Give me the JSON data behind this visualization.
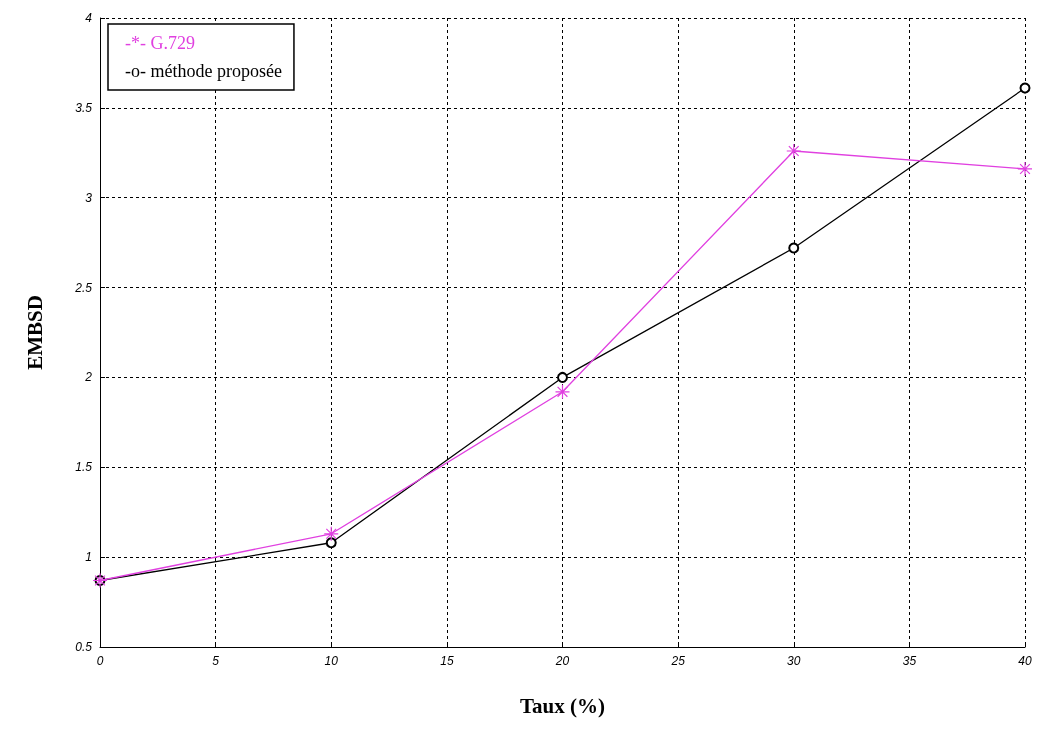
{
  "chart_data": {
    "type": "line",
    "xlabel": "Taux (%)",
    "ylabel": "EMBSD",
    "x": [
      0,
      10,
      20,
      30,
      40
    ],
    "series": [
      {
        "name": "-*- G.729",
        "color": "#e040e0",
        "marker": "cross",
        "values": [
          0.87,
          1.13,
          1.92,
          3.26,
          3.16
        ]
      },
      {
        "name": "-o- méthode proposée",
        "color": "#000000",
        "marker": "circle",
        "values": [
          0.87,
          1.08,
          2.0,
          2.72,
          3.61
        ]
      }
    ],
    "xlim": [
      0,
      40
    ],
    "xticks": [
      0,
      5,
      10,
      15,
      20,
      25,
      30,
      35,
      40
    ],
    "ylim": [
      0.5,
      4
    ],
    "yticks": [
      0.5,
      1,
      1.5,
      2,
      2.5,
      3,
      3.5,
      4
    ],
    "grid": true,
    "legend": "top left"
  }
}
